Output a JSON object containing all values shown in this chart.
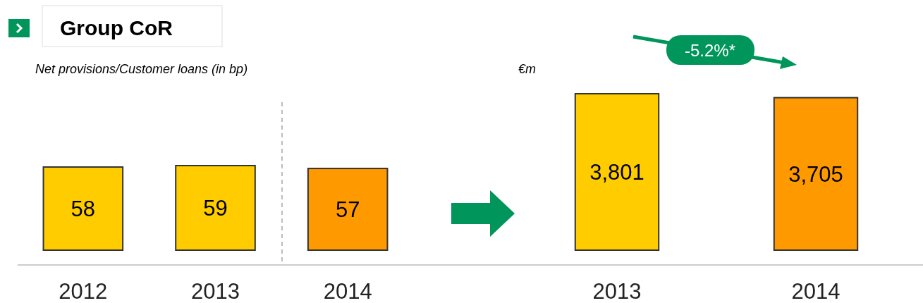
{
  "chart_data": [
    {
      "type": "bar",
      "title": "Group CoR",
      "subtitle": "Net provisions/Customer loans (in bp)",
      "categories": [
        "2012",
        "2013",
        "2014"
      ],
      "values": [
        58,
        59,
        57
      ],
      "colors": [
        "#ffcc00",
        "#ffcc00",
        "#ff9900"
      ],
      "data_labels": true
    },
    {
      "type": "bar",
      "subtitle": "€m",
      "categories": [
        "2013",
        "2014"
      ],
      "values": [
        3801,
        3705
      ],
      "colors": [
        "#ffcc00",
        "#ff9900"
      ],
      "value_labels": [
        "3,801",
        "3,705"
      ],
      "annotations": [
        "-5.2%*"
      ]
    }
  ]
}
